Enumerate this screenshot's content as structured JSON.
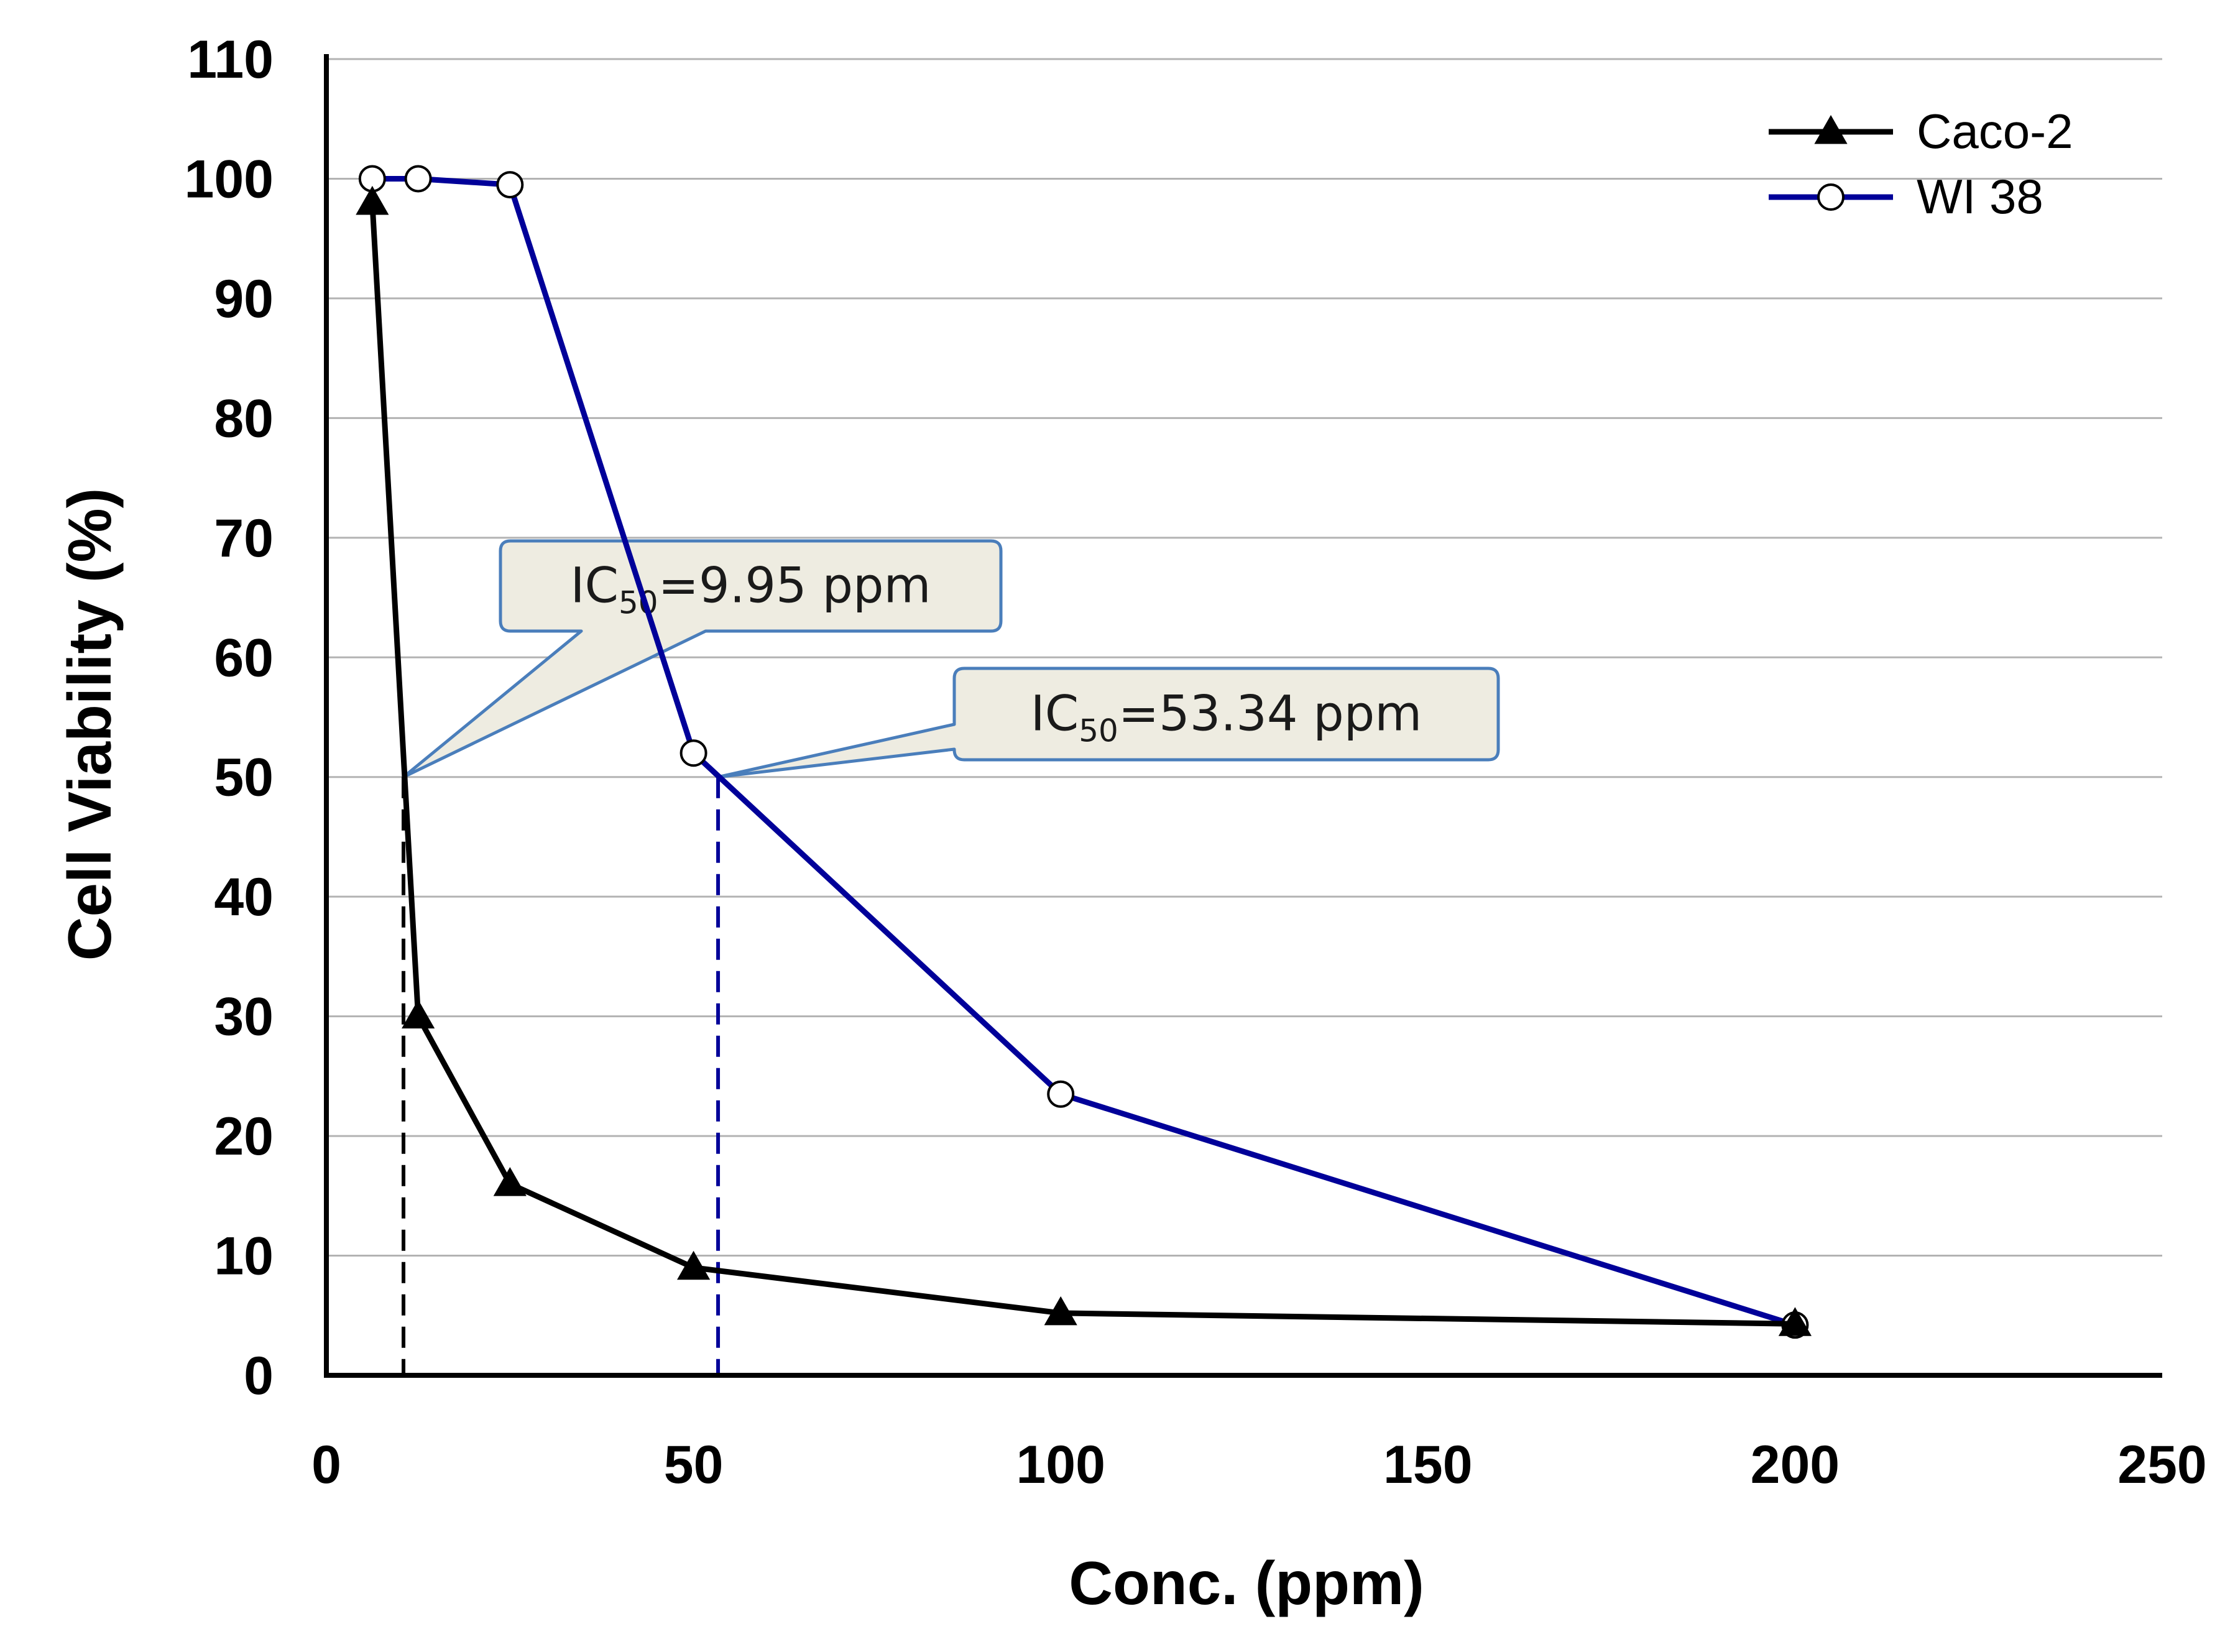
{
  "chart_data": {
    "type": "line",
    "xlabel": "Conc. (ppm)",
    "ylabel": "Cell Viability (%)",
    "xlim": [
      0,
      250
    ],
    "ylim": [
      0,
      110
    ],
    "xticks": [
      0,
      50,
      100,
      150,
      200,
      250
    ],
    "yticks": [
      0,
      10,
      20,
      30,
      40,
      50,
      60,
      70,
      80,
      90,
      100,
      110
    ],
    "grid": "horizontal",
    "legend_position": "top-right",
    "series": [
      {
        "name": "Caco-2",
        "color": "#000000",
        "marker": "filled-triangle",
        "x": [
          6.25,
          12.5,
          25,
          50,
          100,
          200
        ],
        "y": [
          98,
          30,
          16,
          9,
          5.2,
          4.3
        ]
      },
      {
        "name": "WI 38",
        "color": "#000099",
        "marker": "open-circle",
        "x": [
          6.25,
          12.5,
          25,
          50,
          100,
          200
        ],
        "y": [
          100,
          100,
          99.5,
          52,
          23.5,
          4.2
        ]
      }
    ],
    "annotations": [
      {
        "id": "ic50-caco2",
        "prefix": "IC",
        "subscript": "50",
        "text": "=9.95 ppm",
        "x": 10.5,
        "y": 50,
        "color": "#000000"
      },
      {
        "id": "ic50-wi38",
        "prefix": "IC",
        "subscript": "50",
        "text": "=53.34 ppm",
        "x": 53.34,
        "y": 50,
        "color": "#000099"
      }
    ],
    "colors": {
      "grid": "#b3b3b3",
      "axis": "#000000",
      "callout_fill": "#eeece1",
      "callout_border": "#4a7ebb"
    }
  }
}
